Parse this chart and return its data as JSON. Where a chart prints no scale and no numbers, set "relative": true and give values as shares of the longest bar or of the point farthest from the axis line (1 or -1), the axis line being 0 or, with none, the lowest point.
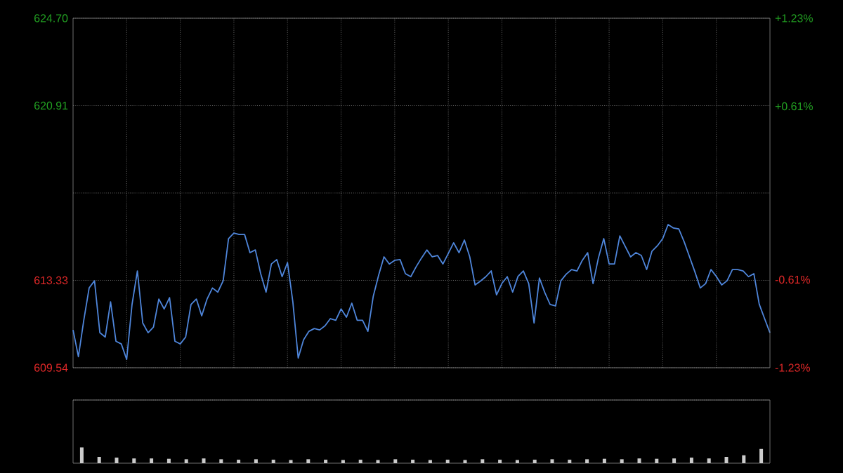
{
  "chart_data": [
    {
      "type": "line",
      "color": "#4f86db",
      "grid": true,
      "line_style": "solid",
      "categories": [
        null,
        null,
        null,
        null,
        null,
        null,
        null,
        null,
        null,
        null,
        null,
        null,
        null,
        null,
        null,
        null,
        null,
        null,
        null,
        null,
        null,
        null,
        null,
        null,
        null,
        null,
        null,
        null,
        null,
        null,
        null,
        null,
        null,
        null,
        null,
        null,
        null,
        null,
        null,
        null,
        null,
        null,
        null,
        null,
        null,
        null,
        null,
        null,
        null,
        null,
        null,
        null,
        null,
        null,
        null,
        null,
        null,
        null,
        null,
        null,
        null,
        null,
        null,
        null,
        null,
        null,
        null,
        null,
        null,
        null,
        null,
        null,
        null,
        null,
        null,
        null,
        null,
        null,
        null,
        null,
        null,
        null,
        null,
        null,
        null,
        null,
        null,
        null,
        null,
        null,
        null,
        null,
        null,
        null,
        null,
        null,
        null,
        null,
        null,
        null,
        null,
        null,
        null,
        null,
        null,
        null,
        null,
        null,
        null,
        null,
        null,
        null,
        null,
        null,
        null,
        null,
        null,
        null,
        null,
        null,
        null,
        null,
        null,
        null,
        null,
        null,
        null,
        null,
        null,
        null,
        null
      ],
      "values": [
        611.18,
        610.02,
        611.6,
        613.0,
        613.31,
        611.06,
        610.87,
        612.4,
        610.69,
        610.57,
        609.9,
        612.28,
        613.74,
        611.48,
        611.06,
        611.3,
        612.52,
        612.09,
        612.58,
        610.69,
        610.57,
        610.87,
        612.28,
        612.52,
        611.79,
        612.52,
        613.0,
        612.82,
        613.31,
        615.14,
        615.38,
        615.32,
        615.32,
        614.53,
        614.65,
        613.62,
        612.82,
        614.04,
        614.23,
        613.49,
        614.1,
        612.4,
        609.96,
        610.75,
        611.12,
        611.24,
        611.18,
        611.36,
        611.67,
        611.6,
        612.09,
        611.73,
        612.34,
        611.6,
        611.6,
        611.12,
        612.64,
        613.55,
        614.35,
        614.04,
        614.2,
        614.23,
        613.62,
        613.49,
        613.92,
        614.3,
        614.65,
        614.35,
        614.41,
        614.04,
        614.5,
        614.96,
        614.53,
        615.08,
        614.35,
        613.13,
        613.3,
        613.49,
        613.74,
        612.7,
        613.2,
        613.49,
        612.82,
        613.5,
        613.74,
        613.19,
        611.48,
        613.43,
        612.8,
        612.28,
        612.22,
        613.31,
        613.6,
        613.8,
        613.74,
        614.2,
        614.53,
        613.19,
        614.3,
        615.14,
        614.04,
        614.04,
        615.26,
        614.8,
        614.35,
        614.53,
        614.41,
        613.8,
        614.6,
        614.83,
        615.14,
        615.75,
        615.6,
        615.56,
        615.0,
        614.35,
        613.7,
        613.0,
        613.19,
        613.8,
        613.5,
        613.13,
        613.31,
        613.8,
        613.8,
        613.74,
        613.49,
        613.62,
        612.3,
        611.67,
        611.06
      ],
      "ylim": [
        609.54,
        624.7
      ],
      "yticks": [
        {
          "value": 609.54,
          "label": "609.54"
        },
        {
          "value": 613.33,
          "label": "613.33"
        },
        {
          "value": 617.12,
          "label": null
        },
        {
          "value": 620.91,
          "label": "620.91"
        },
        {
          "value": 624.7,
          "label": "624.70"
        }
      ],
      "y2lim": [
        -1.23,
        1.23
      ],
      "y2ticks": [
        {
          "value": -1.23,
          "label": "-1.23%"
        },
        {
          "value": -0.61,
          "label": "-0.61%"
        },
        {
          "value": 0,
          "label": null
        },
        {
          "value": 0.61,
          "label": "+0.61%"
        },
        {
          "value": 1.23,
          "label": "+1.23%"
        }
      ]
    },
    {
      "type": "bar",
      "relative": true,
      "color": "#cccccc",
      "categories": [
        null,
        null,
        null,
        null,
        null,
        null,
        null,
        null,
        null,
        null,
        null,
        null,
        null,
        null,
        null,
        null,
        null,
        null,
        null,
        null,
        null,
        null,
        null,
        null,
        null,
        null,
        null,
        null,
        null,
        null,
        null,
        null,
        null,
        null,
        null,
        null,
        null,
        null,
        null,
        null
      ],
      "values": [
        1,
        0.4,
        0.35,
        0.3,
        0.3,
        0.28,
        0.25,
        0.3,
        0.25,
        0.22,
        0.25,
        0.22,
        0.2,
        0.25,
        0.22,
        0.2,
        0.22,
        0.2,
        0.25,
        0.22,
        0.2,
        0.22,
        0.2,
        0.25,
        0.22,
        0.2,
        0.22,
        0.25,
        0.22,
        0.25,
        0.28,
        0.25,
        0.3,
        0.28,
        0.3,
        0.35,
        0.3,
        0.4,
        0.5,
        0.9
      ]
    }
  ]
}
